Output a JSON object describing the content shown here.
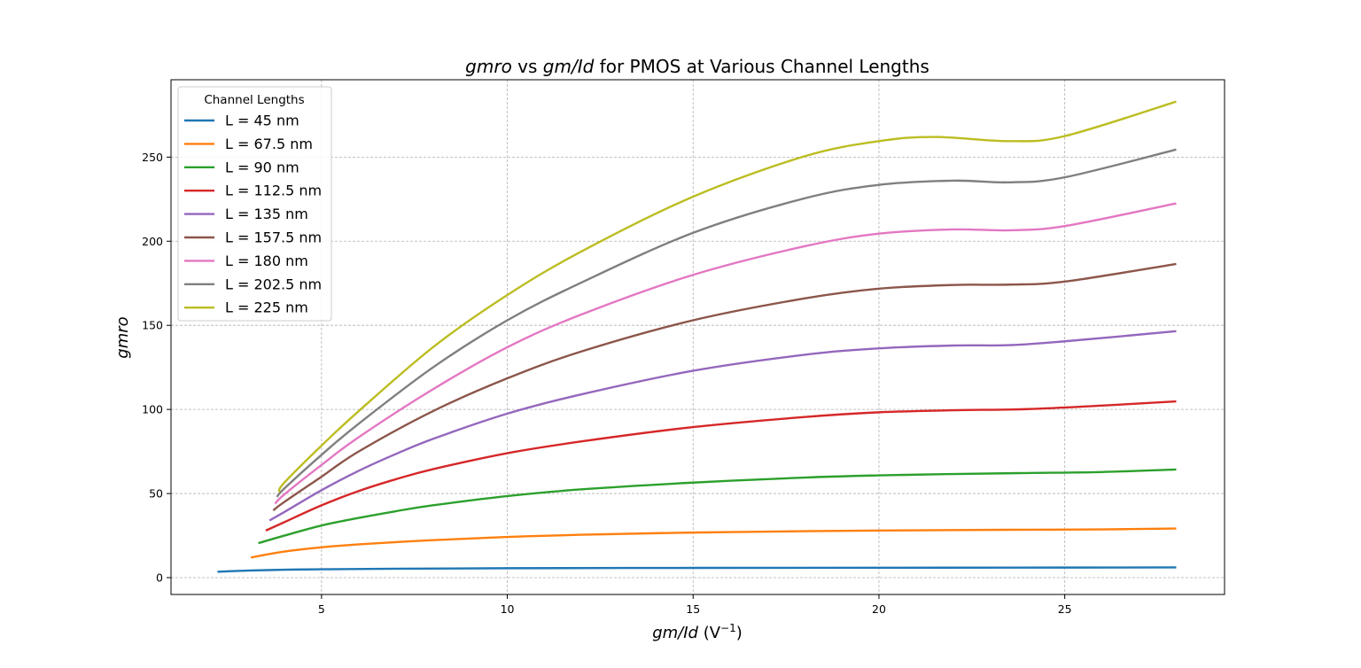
{
  "chart_data": {
    "type": "line",
    "title": {
      "part1": "gmro",
      "part2": " vs ",
      "part3": "gm/Id",
      "part4": " for PMOS at Various Channel Lengths"
    },
    "xlabel": {
      "italic": "gm/Id",
      "prefix": " (V",
      "sup": "−1",
      "suffix": ")"
    },
    "ylabel": "gmro",
    "xlim": [
      0.95,
      29.3
    ],
    "ylim": [
      -10,
      296
    ],
    "xticks": [
      5,
      10,
      15,
      20,
      25
    ],
    "yticks": [
      0,
      50,
      100,
      150,
      200,
      250
    ],
    "grid": true,
    "legend": {
      "title": "Channel Lengths",
      "position": "upper-left"
    },
    "series": [
      {
        "name": "L = 45 nm",
        "color": "#1f77b4",
        "points": [
          [
            2.2,
            3.5
          ],
          [
            3,
            4.2
          ],
          [
            4,
            4.7
          ],
          [
            5,
            5.0
          ],
          [
            7,
            5.3
          ],
          [
            10,
            5.6
          ],
          [
            15,
            5.8
          ],
          [
            20,
            5.9
          ],
          [
            25,
            6.0
          ],
          [
            28,
            6.1
          ]
        ]
      },
      {
        "name": "L = 67.5 nm",
        "color": "#ff7f0e",
        "points": [
          [
            3.1,
            12
          ],
          [
            4,
            15.5
          ],
          [
            5,
            18
          ],
          [
            6,
            19.8
          ],
          [
            8,
            22.3
          ],
          [
            10,
            24.2
          ],
          [
            12,
            25.5
          ],
          [
            15,
            26.8
          ],
          [
            18,
            27.6
          ],
          [
            20,
            28.0
          ],
          [
            22,
            28.3
          ],
          [
            24,
            28.5
          ],
          [
            26,
            28.7
          ],
          [
            28,
            29.2
          ]
        ]
      },
      {
        "name": "L = 90 nm",
        "color": "#2ca02c",
        "points": [
          [
            3.3,
            20.5
          ],
          [
            4,
            25
          ],
          [
            5,
            31
          ],
          [
            6,
            35.5
          ],
          [
            7,
            39.5
          ],
          [
            8,
            43
          ],
          [
            10,
            48.5
          ],
          [
            12,
            52.5
          ],
          [
            15,
            56.5
          ],
          [
            18,
            59.5
          ],
          [
            20,
            60.8
          ],
          [
            22,
            61.6
          ],
          [
            24,
            62.2
          ],
          [
            26,
            62.8
          ],
          [
            28,
            64.3
          ]
        ]
      },
      {
        "name": "L = 112.5 nm",
        "color": "#d62728",
        "points": [
          [
            3.5,
            28
          ],
          [
            4,
            33
          ],
          [
            5,
            43
          ],
          [
            6,
            51.5
          ],
          [
            7,
            58.5
          ],
          [
            8,
            64.5
          ],
          [
            10,
            74
          ],
          [
            12,
            81
          ],
          [
            15,
            89.5
          ],
          [
            18,
            95.5
          ],
          [
            20,
            98.3
          ],
          [
            22,
            99.5
          ],
          [
            24,
            100.2
          ],
          [
            26,
            102.3
          ],
          [
            28,
            104.8
          ]
        ]
      },
      {
        "name": "L = 135 nm",
        "color": "#9467bd",
        "points": [
          [
            3.6,
            34
          ],
          [
            4,
            39
          ],
          [
            5,
            52
          ],
          [
            6,
            63.5
          ],
          [
            7,
            73.5
          ],
          [
            8,
            82.5
          ],
          [
            10,
            97.5
          ],
          [
            12,
            109
          ],
          [
            15,
            123
          ],
          [
            18,
            132.5
          ],
          [
            20,
            136.3
          ],
          [
            22,
            138
          ],
          [
            23.5,
            138.2
          ],
          [
            25,
            140.5
          ],
          [
            28,
            146.5
          ]
        ]
      },
      {
        "name": "L = 157.5 nm",
        "color": "#8c564b",
        "points": [
          [
            3.7,
            40
          ],
          [
            4,
            45
          ],
          [
            5,
            60
          ],
          [
            6,
            75
          ],
          [
            8,
            99
          ],
          [
            10,
            118.5
          ],
          [
            12,
            134.5
          ],
          [
            15,
            153
          ],
          [
            18,
            166
          ],
          [
            20,
            171.8
          ],
          [
            22,
            174
          ],
          [
            23.5,
            174.2
          ],
          [
            25,
            176
          ],
          [
            28,
            186.5
          ]
        ]
      },
      {
        "name": "L = 180 nm",
        "color": "#e377c2",
        "points": [
          [
            3.75,
            44
          ],
          [
            4,
            49.5
          ],
          [
            5,
            67
          ],
          [
            6,
            83.5
          ],
          [
            8,
            112
          ],
          [
            10,
            137
          ],
          [
            12,
            156.5
          ],
          [
            15,
            180
          ],
          [
            18,
            197
          ],
          [
            20,
            204.5
          ],
          [
            22,
            207
          ],
          [
            23.5,
            206.5
          ],
          [
            25,
            209
          ],
          [
            28,
            222.5
          ]
        ]
      },
      {
        "name": "L = 202.5 nm",
        "color": "#7f7f7f",
        "points": [
          [
            3.8,
            48
          ],
          [
            4,
            53
          ],
          [
            5,
            73
          ],
          [
            6,
            91.5
          ],
          [
            8,
            125
          ],
          [
            10,
            153
          ],
          [
            12,
            175.5
          ],
          [
            15,
            205
          ],
          [
            18,
            225.5
          ],
          [
            20,
            233.5
          ],
          [
            22,
            236
          ],
          [
            23.5,
            235
          ],
          [
            25,
            238
          ],
          [
            28,
            254.5
          ]
        ]
      },
      {
        "name": "L = 225 nm",
        "color": "#bcbd22",
        "points": [
          [
            3.85,
            51
          ],
          [
            4,
            56.5
          ],
          [
            5,
            78.5
          ],
          [
            6,
            99
          ],
          [
            8,
            137
          ],
          [
            10,
            168
          ],
          [
            12,
            194
          ],
          [
            15,
            226.5
          ],
          [
            18,
            250.5
          ],
          [
            20,
            259.5
          ],
          [
            21.5,
            262
          ],
          [
            23.5,
            259.5
          ],
          [
            25,
            262.5
          ],
          [
            28,
            283
          ]
        ]
      }
    ]
  }
}
